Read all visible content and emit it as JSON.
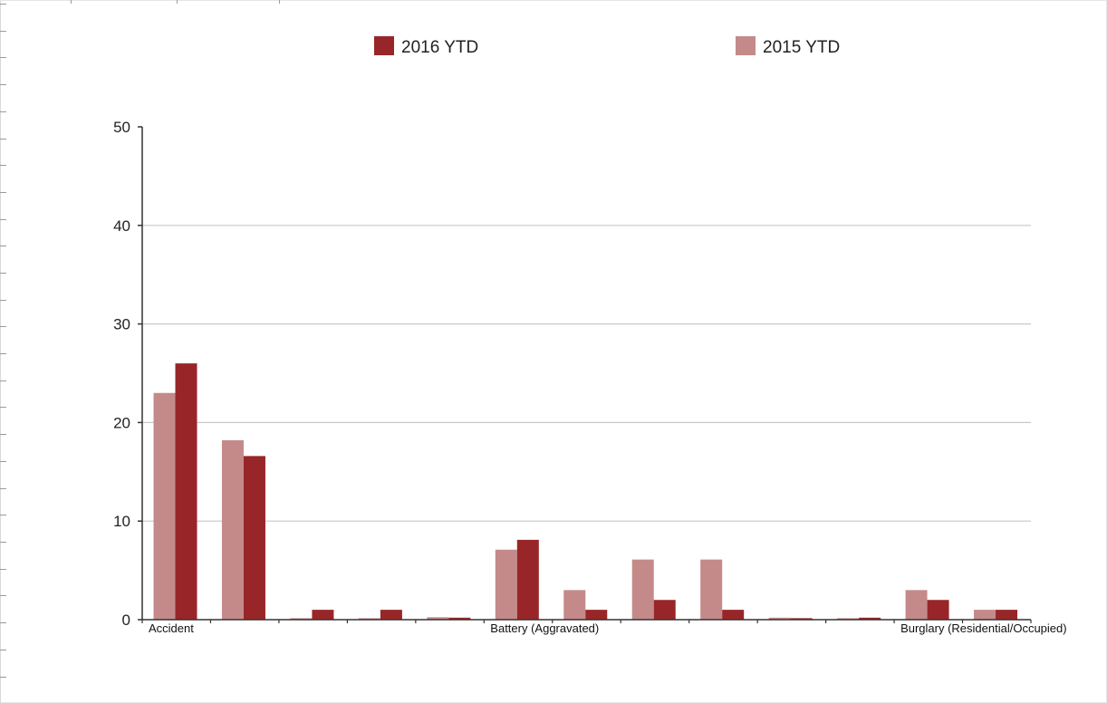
{
  "chart_data": {
    "type": "bar",
    "series": [
      {
        "name": "2015 YTD",
        "color": "#c48a89",
        "values": [
          23,
          18.2,
          0.15,
          0.15,
          0.25,
          7.1,
          3,
          6.1,
          6.1,
          0.2,
          0.15,
          3,
          1
        ]
      },
      {
        "name": "2016 YTD",
        "color": "#982628",
        "values": [
          26,
          16.6,
          1,
          1,
          0.2,
          8.1,
          1,
          2,
          1,
          0.15,
          0.2,
          2,
          1
        ]
      }
    ],
    "legend_order": [
      "2016 YTD",
      "2015 YTD"
    ],
    "category_labels": [
      {
        "index": 0,
        "label": "Accident"
      },
      {
        "index": 5,
        "label": "Battery (Aggravated)"
      },
      {
        "index": 11,
        "label": "Burglary (Residential/Occupied)"
      }
    ],
    "ylim": [
      0,
      50
    ],
    "yticks": [
      0,
      10,
      20,
      30,
      40,
      50
    ],
    "grid": true,
    "legend_position": "top",
    "title": "",
    "xlabel": "",
    "ylabel": ""
  }
}
